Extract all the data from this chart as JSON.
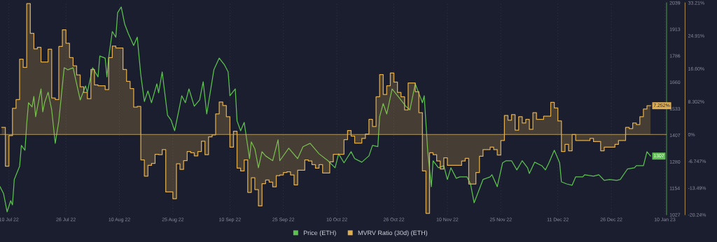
{
  "chart_data": {
    "type": "line",
    "xlim": [
      "2022-07-07T12:00",
      "2023-01-10T12:00"
    ],
    "xticks": [
      {
        "value": "2022-07-10",
        "label": "10 Jul 22"
      },
      {
        "value": "2022-07-26",
        "label": "26 Jul 22"
      },
      {
        "value": "2022-08-10",
        "label": "10 Aug 22"
      },
      {
        "value": "2022-08-25",
        "label": "25 Aug 22"
      },
      {
        "value": "2022-09-10",
        "label": "10 Sep 22"
      },
      {
        "value": "2022-09-25",
        "label": "25 Sep 22"
      },
      {
        "value": "2022-10-10",
        "label": "10 Oct 22"
      },
      {
        "value": "2022-10-26",
        "label": "26 Oct 22"
      },
      {
        "value": "2022-11-10",
        "label": "10 Nov 22"
      },
      {
        "value": "2022-11-25",
        "label": "25 Nov 22"
      },
      {
        "value": "2022-12-11",
        "label": "11 Dec 22"
      },
      {
        "value": "2022-12-26",
        "label": "26 Dec 22"
      },
      {
        "value": "2023-01-10",
        "label": "10 Jan 23"
      }
    ],
    "ylim": [
      1027,
      2039
    ],
    "yticks": [
      1027,
      1154,
      1280,
      1407,
      1533,
      1660,
      1786,
      1913,
      2039
    ],
    "y2lim": [
      -20.24,
      33.21
    ],
    "y2ticks": [
      {
        "value": -20.24,
        "label": "-20.24%"
      },
      {
        "value": -13.49,
        "label": "-13.49%"
      },
      {
        "value": -6.747,
        "label": "-6.747%"
      },
      {
        "value": 0,
        "label": "0%"
      },
      {
        "value": 8.302,
        "label": "8.302%"
      },
      {
        "value": 16.6,
        "label": "16.60%"
      },
      {
        "value": 24.91,
        "label": "24.91%"
      },
      {
        "value": 33.21,
        "label": "33.21%"
      }
    ],
    "grid": "x",
    "legend": "bottom",
    "ref_lines": [
      {
        "axis": "y2",
        "value": 0,
        "color": "#d9b46a"
      }
    ],
    "series": [
      {
        "name": "Price (ETH)",
        "color": "#5cc24f",
        "x": [
          "2022-07-07T12:00",
          "2022-07-08T12:00",
          "2022-07-09T12:00",
          "2022-07-10T12:00",
          "2022-07-11T00:00",
          "2022-07-11T12:00",
          "2022-07-13T00:00",
          "2022-07-13T12:00",
          "2022-07-14T12:00",
          "2022-07-15T00:00",
          "2022-07-15T12:00",
          "2022-07-16T12:00",
          "2022-07-17T00:00",
          "2022-07-17T12:00",
          "2022-07-19T00:00",
          "2022-07-19T12:00",
          "2022-07-20T00:00",
          "2022-07-21T00:00",
          "2022-07-22T00:00",
          "2022-07-23T00:00",
          "2022-07-24T00:00",
          "2022-07-25T12:00",
          "2022-07-26T12:00",
          "2022-07-28T00:00",
          "2022-07-30T00:00",
          "2022-07-31T12:00",
          "2022-08-01T00:00",
          "2022-08-02T12:00",
          "2022-08-04T00:00",
          "2022-08-04T12:00",
          "2022-08-06T00:00",
          "2022-08-06T12:00",
          "2022-08-07T00:00",
          "2022-08-08T00:00",
          "2022-08-09T00:00",
          "2022-08-09T12:00",
          "2022-08-10T12:00",
          "2022-08-11T12:00",
          "2022-08-12T12:00",
          "2022-08-14T00:00",
          "2022-08-15T00:00",
          "2022-08-16T00:00",
          "2022-08-17T00:00",
          "2022-08-18T00:00",
          "2022-08-19T00:00",
          "2022-08-20T12:00",
          "2022-08-21T00:00",
          "2022-08-22T00:00",
          "2022-08-23T12:00",
          "2022-08-24T12:00",
          "2022-08-25T12:00",
          "2022-08-27T12:00",
          "2022-08-28T12:00",
          "2022-08-29T12:00",
          "2022-08-31T00:00",
          "2022-09-01T12:00",
          "2022-09-02T12:00",
          "2022-09-03T12:00",
          "2022-09-05T12:00",
          "2022-09-07T00:00",
          "2022-09-08T12:00",
          "2022-09-09T12:00",
          "2022-09-10T00:00",
          "2022-09-11T12:00",
          "2022-09-12T00:00",
          "2022-09-13T00:00",
          "2022-09-14T00:00",
          "2022-09-15T12:00",
          "2022-09-16T00:00",
          "2022-09-17T00:00",
          "2022-09-18T00:00",
          "2022-09-19T00:00",
          "2022-09-20T00:00",
          "2022-09-22T00:00",
          "2022-09-23T12:00",
          "2022-09-24T00:00",
          "2022-09-26T12:00",
          "2022-09-29T00:00",
          "2022-09-30T12:00",
          "2022-10-02T12:00",
          "2022-10-05T00:00",
          "2022-10-07T12:00",
          "2022-10-09T12:00",
          "2022-10-10T12:00",
          "2022-10-12T00:00",
          "2022-10-14T00:00",
          "2022-10-15T00:00",
          "2022-10-17T00:00",
          "2022-10-19T00:00",
          "2022-10-20T00:00",
          "2022-10-21T12:00",
          "2022-10-22T00:00",
          "2022-10-23T00:00",
          "2022-10-24T00:00",
          "2022-10-25T12:00",
          "2022-10-27T12:00",
          "2022-10-29T12:00",
          "2022-10-30T12:00",
          "2022-11-01T00:00",
          "2022-11-03T00:00",
          "2022-11-03T12:00",
          "2022-11-04T12:00",
          "2022-11-05T12:00",
          "2022-11-06T00:00",
          "2022-11-07T12:00",
          "2022-11-09T00:00",
          "2022-11-10T00:00",
          "2022-11-11T00:00",
          "2022-11-12T12:00",
          "2022-11-13T12:00",
          "2022-11-15T12:00",
          "2022-11-16T12:00",
          "2022-11-17T12:00",
          "2022-11-18T12:00",
          "2022-11-20T00:00",
          "2022-11-22T00:00",
          "2022-11-22T12:00",
          "2022-11-24T00:00",
          "2022-11-25T12:00",
          "2022-11-26T12:00",
          "2022-11-28T00:00",
          "2022-11-29T12:00",
          "2022-12-01T00:00",
          "2022-12-02T12:00",
          "2022-12-03T00:00",
          "2022-12-04T12:00",
          "2022-12-06T12:00",
          "2022-12-07T12:00",
          "2022-12-08T12:00",
          "2022-12-10T00:00",
          "2022-12-11T12:00",
          "2022-12-12T00:00",
          "2022-12-13T12:00",
          "2022-12-15T00:00",
          "2022-12-16T00:00",
          "2022-12-18T00:00",
          "2022-12-18T12:00",
          "2022-12-21T00:00",
          "2022-12-22T12:00",
          "2022-12-24T00:00",
          "2022-12-25T12:00",
          "2022-12-27T12:00",
          "2022-12-28T12:00",
          "2022-12-30T12:00",
          "2023-01-01T12:00",
          "2023-01-02T00:00",
          "2023-01-04T00:00",
          "2023-01-05T00:00",
          "2023-01-06T00:00"
        ],
        "values": [
          1161,
          1128,
          1041,
          1094,
          1074,
          1195,
          1258,
          1358,
          1335,
          1462,
          1562,
          1542,
          1592,
          1495,
          1628,
          1518,
          1562,
          1612,
          1528,
          1368,
          1475,
          1729,
          1719,
          1729,
          1575,
          1642,
          1612,
          1729,
          1685,
          1785,
          1775,
          1685,
          1779,
          1902,
          1875,
          1992,
          2019,
          1936,
          1892,
          1835,
          1875,
          1695,
          1568,
          1618,
          1562,
          1652,
          1609,
          1709,
          1502,
          1478,
          1428,
          1595,
          1562,
          1628,
          1545,
          1575,
          1662,
          1508,
          1719,
          1775,
          1742,
          1709,
          1595,
          1628,
          1475,
          1428,
          1468,
          1295,
          1375,
          1341,
          1251,
          1328,
          1308,
          1285,
          1385,
          1285,
          1345,
          1295,
          1352,
          1368,
          1318,
          1285,
          1251,
          1318,
          1275,
          1328,
          1295,
          1278,
          1308,
          1358,
          1352,
          1495,
          1558,
          1508,
          1628,
          1585,
          1542,
          1528,
          1652,
          1562,
          1595,
          1328,
          1161,
          1285,
          1251,
          1261,
          1195,
          1251,
          1201,
          1208,
          1208,
          1174,
          1084,
          1128,
          1195,
          1208,
          1218,
          1161,
          1275,
          1285,
          1285,
          1241,
          1285,
          1251,
          1224,
          1278,
          1261,
          1241,
          1275,
          1335,
          1275,
          1184,
          1174,
          1168,
          1208,
          1208,
          1218,
          1211,
          1218,
          1191,
          1195,
          1191,
          1195,
          1245,
          1251,
          1261,
          1261,
          1328,
          1307
        ],
        "value_labels": [
          null,
          null,
          null,
          null,
          null,
          null,
          null,
          null,
          null,
          null,
          null,
          null,
          null,
          null,
          null,
          null,
          null,
          null,
          null,
          null,
          null,
          null,
          null,
          null,
          null,
          null,
          null,
          null,
          null,
          null,
          null,
          null,
          null,
          null,
          null,
          null,
          null,
          null,
          null,
          null,
          null,
          null,
          null,
          null,
          null,
          null,
          null,
          null,
          null,
          null,
          null,
          null,
          null,
          null,
          null,
          null,
          null,
          null,
          null,
          null,
          null,
          null,
          null,
          null,
          null,
          null,
          null,
          null,
          null,
          null,
          null,
          null,
          null,
          null,
          null,
          null,
          null,
          null,
          null,
          null,
          null,
          null,
          null,
          null,
          null,
          null,
          null,
          null,
          null,
          null,
          null,
          null,
          null,
          null,
          null,
          null,
          null,
          null,
          null,
          null,
          null,
          null,
          null,
          null,
          null,
          null,
          null,
          null,
          null,
          null,
          null,
          null,
          null,
          null,
          null,
          null,
          null,
          null,
          null,
          null,
          null,
          null,
          null,
          null,
          null,
          null,
          null,
          null,
          null,
          null,
          null,
          null,
          null,
          null,
          null,
          null,
          null,
          null,
          null,
          null,
          null,
          null,
          null,
          null,
          null,
          null,
          null,
          null,
          "1307"
        ]
      },
      {
        "name": "MVRV Ratio (30d) (ETH)",
        "type": "step",
        "axis": "y2",
        "color": "#e0ae4f",
        "x": [
          "2022-07-08",
          "2022-07-09",
          "2022-07-10",
          "2022-07-11",
          "2022-07-12",
          "2022-07-13",
          "2022-07-14",
          "2022-07-15",
          "2022-07-16",
          "2022-07-17",
          "2022-07-18",
          "2022-07-19",
          "2022-07-21",
          "2022-07-22",
          "2022-07-23",
          "2022-07-24",
          "2022-07-25",
          "2022-07-26",
          "2022-07-27",
          "2022-07-28",
          "2022-07-29",
          "2022-07-30",
          "2022-07-31",
          "2022-08-01",
          "2022-08-02",
          "2022-08-03",
          "2022-08-04",
          "2022-08-06",
          "2022-08-07",
          "2022-08-08",
          "2022-08-09",
          "2022-08-11",
          "2022-08-12",
          "2022-08-13",
          "2022-08-14",
          "2022-08-15",
          "2022-08-16",
          "2022-08-17",
          "2022-08-18",
          "2022-08-19",
          "2022-08-20",
          "2022-08-21",
          "2022-08-22",
          "2022-08-23",
          "2022-08-25",
          "2022-08-26",
          "2022-08-27",
          "2022-08-28",
          "2022-08-29",
          "2022-08-30",
          "2022-08-31",
          "2022-09-01",
          "2022-09-02",
          "2022-09-03",
          "2022-09-04",
          "2022-09-05",
          "2022-09-06",
          "2022-09-07",
          "2022-09-08",
          "2022-09-09",
          "2022-09-10",
          "2022-09-11",
          "2022-09-12",
          "2022-09-13",
          "2022-09-14",
          "2022-09-15",
          "2022-09-16",
          "2022-09-17",
          "2022-09-18",
          "2022-09-19",
          "2022-09-20",
          "2022-09-21",
          "2022-09-22",
          "2022-09-23",
          "2022-09-24",
          "2022-09-25",
          "2022-09-26",
          "2022-09-27",
          "2022-09-28",
          "2022-09-29",
          "2022-10-01",
          "2022-10-02",
          "2022-10-03",
          "2022-10-04",
          "2022-10-05",
          "2022-10-06",
          "2022-10-08",
          "2022-10-09",
          "2022-10-12",
          "2022-10-13",
          "2022-10-14",
          "2022-10-15",
          "2022-10-17",
          "2022-10-18",
          "2022-10-19",
          "2022-10-20",
          "2022-10-21",
          "2022-10-22",
          "2022-10-23",
          "2022-10-24",
          "2022-10-25",
          "2022-10-26",
          "2022-10-27",
          "2022-10-28",
          "2022-10-29",
          "2022-10-30",
          "2022-11-01",
          "2022-11-02",
          "2022-11-03",
          "2022-11-04",
          "2022-11-05",
          "2022-11-06",
          "2022-11-07",
          "2022-11-08",
          "2022-11-09",
          "2022-11-10",
          "2022-11-14",
          "2022-11-15",
          "2022-11-16",
          "2022-11-18",
          "2022-11-19",
          "2022-11-20",
          "2022-11-22",
          "2022-11-23",
          "2022-11-24",
          "2022-11-25",
          "2022-11-26",
          "2022-11-27",
          "2022-11-28",
          "2022-11-29",
          "2022-11-30",
          "2022-12-01",
          "2022-12-02",
          "2022-12-03",
          "2022-12-04",
          "2022-12-05",
          "2022-12-07",
          "2022-12-09",
          "2022-12-10",
          "2022-12-11",
          "2022-12-12",
          "2022-12-13",
          "2022-12-14",
          "2022-12-15",
          "2022-12-16",
          "2022-12-20",
          "2022-12-21",
          "2022-12-23",
          "2022-12-24",
          "2022-12-27",
          "2022-12-28",
          "2022-12-30",
          "2022-12-31",
          "2023-01-01",
          "2023-01-02",
          "2023-01-03",
          "2023-01-04",
          "2023-01-05",
          "2023-01-06"
        ],
        "values": [
          1.8,
          -8.0,
          -0.3,
          6.6,
          8.8,
          19.0,
          16.9,
          33.0,
          25.5,
          21.6,
          22.0,
          18.3,
          21.5,
          9.2,
          8.8,
          22.2,
          26.4,
          23.0,
          19.4,
          17.3,
          15.0,
          12.0,
          10.6,
          9.0,
          16.4,
          12.5,
          12.3,
          11.3,
          19.4,
          22.3,
          21.8,
          16.4,
          13.4,
          11.6,
          6.9,
          7.1,
          -6.4,
          -10.5,
          -7.8,
          -7.3,
          -5.0,
          -5.1,
          -3.8,
          -14.5,
          -16.2,
          -7.4,
          -8.8,
          -6.6,
          -4.3,
          -4.6,
          -5.4,
          -4.3,
          -1.7,
          -5.1,
          -0.6,
          -0.1,
          5.2,
          8.2,
          7.3,
          4.5,
          -3.2,
          0.8,
          -8.5,
          -9.2,
          -6.4,
          -14.6,
          -10.9,
          -13.9,
          -18.0,
          -12.4,
          -11.5,
          -12.0,
          -13.2,
          -10.4,
          -10.2,
          -9.6,
          -9.4,
          -10.2,
          -12.7,
          -9.0,
          -6.4,
          -6.7,
          -7.6,
          -8.5,
          -7.6,
          -9.7,
          -6.9,
          -5.0,
          -1.3,
          1.0,
          -0.4,
          -2.2,
          -1.0,
          0.1,
          3.8,
          2.0,
          9.5,
          15.1,
          10.1,
          12.3,
          15.5,
          13.2,
          10.6,
          9.5,
          6.2,
          13.0,
          10.8,
          5.5,
          -9.2,
          -19.9,
          -4.6,
          -5.1,
          -6.7,
          -8.7,
          -5.9,
          -7.8,
          -6.7,
          -6.0,
          -12.5,
          -9.6,
          -5.5,
          -3.8,
          -3.2,
          -3.8,
          -5.2,
          -1.5,
          4.8,
          3.6,
          5.0,
          1.1,
          4.5,
          2.9,
          3.8,
          1.3,
          5.5,
          3.8,
          4.6,
          8.1,
          6.7,
          3.4,
          -4.3,
          -2.5,
          -4.1,
          0.0,
          -1.5,
          -1.0,
          -1.8,
          -4.1,
          -3.2,
          -2.5,
          -1.5,
          1.8,
          1.5,
          2.9,
          2.5,
          4.5,
          6.4,
          7.252,
          7.252
        ],
        "value_labels": [
          null,
          null,
          null,
          null,
          null,
          null,
          null,
          null,
          null,
          null,
          null,
          null,
          null,
          null,
          null,
          null,
          null,
          null,
          null,
          null,
          null,
          null,
          null,
          null,
          null,
          null,
          null,
          null,
          null,
          null,
          null,
          null,
          null,
          null,
          null,
          null,
          null,
          null,
          null,
          null,
          null,
          null,
          null,
          null,
          null,
          null,
          null,
          null,
          null,
          null,
          null,
          null,
          null,
          null,
          null,
          null,
          null,
          null,
          null,
          null,
          null,
          null,
          null,
          null,
          null,
          null,
          null,
          null,
          null,
          null,
          null,
          null,
          null,
          null,
          null,
          null,
          null,
          null,
          null,
          null,
          null,
          null,
          null,
          null,
          null,
          null,
          null,
          null,
          null,
          null,
          null,
          null,
          null,
          null,
          null,
          null,
          null,
          null,
          null,
          null,
          null,
          null,
          null,
          null,
          null,
          null,
          null,
          null,
          null,
          null,
          null,
          null,
          null,
          null,
          null,
          null,
          null,
          null,
          null,
          null,
          null,
          null,
          null,
          null,
          null,
          null,
          null,
          null,
          null,
          null,
          null,
          null,
          null,
          null,
          null,
          null,
          null,
          null,
          null,
          null,
          null,
          null,
          null,
          null,
          null,
          null,
          null,
          null,
          null,
          null,
          null,
          null,
          null,
          null,
          null,
          null,
          null,
          null,
          "7.252%"
        ]
      }
    ]
  }
}
